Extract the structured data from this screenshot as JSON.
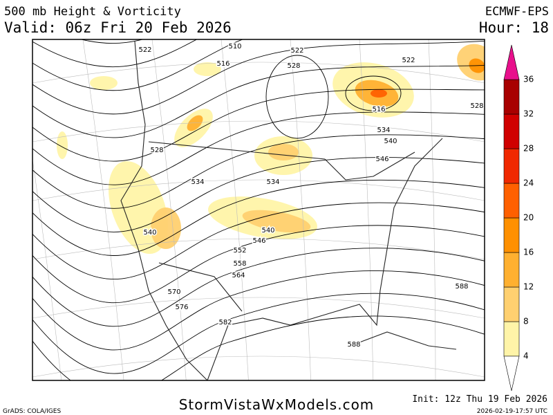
{
  "header": {
    "title": "500 mb Height & Vorticity",
    "valid": "Valid: 06z Fri 20 Feb 2026",
    "model": "ECMWF-EPS",
    "hour": "Hour: 18"
  },
  "colorbar": {
    "ticks": [
      4,
      8,
      12,
      16,
      20,
      24,
      28,
      32,
      36
    ],
    "colors": [
      "#fff4a8",
      "#ffd070",
      "#ffb030",
      "#ff9000",
      "#ff6000",
      "#f02800",
      "#d00000",
      "#a80000"
    ],
    "low_color": "#ffffff",
    "high_color": "#e8108c"
  },
  "contour_labels": [
    "522",
    "510",
    "522",
    "516",
    "528",
    "522",
    "516",
    "528",
    "534",
    "540",
    "546",
    "528",
    "534",
    "534",
    "540",
    "540",
    "546",
    "552",
    "558",
    "564",
    "570",
    "576",
    "582",
    "588",
    "588"
  ],
  "footer": {
    "site": "StormVistaWxModels.com",
    "init": "Init: 12z Thu 19 Feb 2026",
    "credit": "GrADS: COLA/IGES",
    "timestamp": "2026-02-19-17:57 UTC"
  }
}
